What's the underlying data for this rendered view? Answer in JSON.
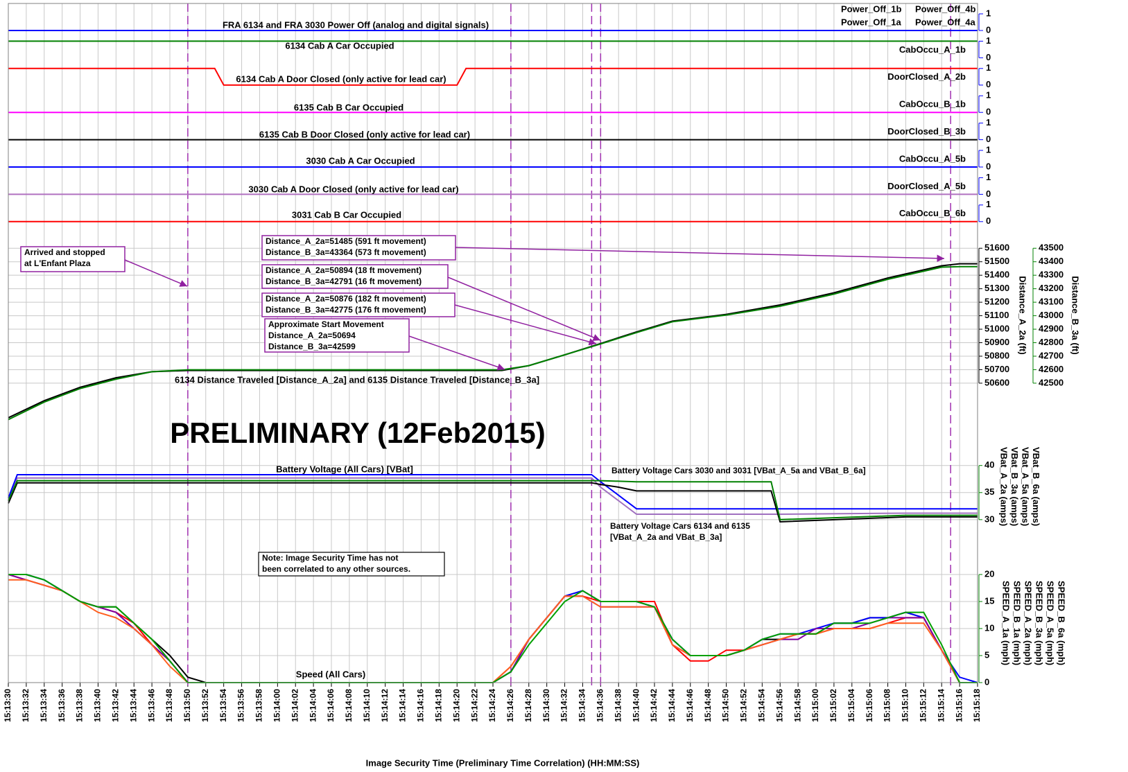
{
  "event_lines": [
    "15:13:50",
    "15:14:26",
    "15:14:35",
    "15:14:36",
    "15:15:15"
  ],
  "watermark": "PRELIMINARY (12Feb2015)",
  "chart_data": [
    {
      "type": "digital",
      "xlim": [
        "15:13:30",
        "15:15:18"
      ],
      "yticks": [
        0,
        1
      ],
      "x": [
        "15:13:30",
        "15:13:53",
        "15:13:54",
        "15:14:20",
        "15:14:21",
        "15:15:18"
      ],
      "channels": [
        {
          "label": "FRA 6134 and FRA 3030 Power Off (analog and digital signals)",
          "series": [
            {
              "name": "Power_Off_1b",
              "color": "#000000",
              "values": [
                0,
                0,
                0,
                0,
                0,
                0
              ]
            },
            {
              "name": "Power_Off_1a",
              "color": "#ff0000",
              "values": [
                0,
                0,
                0,
                0,
                0,
                0
              ]
            },
            {
              "name": "Power_Off_4a",
              "color": "#000000",
              "values": [
                0,
                0,
                0,
                0,
                0,
                0
              ]
            },
            {
              "name": "Power_Off_4b",
              "color": "#0000ff",
              "values": [
                0,
                0,
                0,
                0,
                0,
                0
              ]
            }
          ]
        },
        {
          "label": "6134 Cab A Car Occupied",
          "series": [
            {
              "name": "CabOccu_A_1b",
              "color": "#008000",
              "values": [
                1,
                1,
                1,
                1,
                1,
                1
              ]
            }
          ]
        },
        {
          "label": "6134 Cab A Door Closed (only active for lead car)",
          "series": [
            {
              "name": "DoorClosed_A_2b",
              "color": "#ff0000",
              "values": [
                1,
                1,
                0,
                0,
                1,
                1
              ]
            }
          ]
        },
        {
          "label": "6135 Cab B Car Occupied",
          "series": [
            {
              "name": "CabOccu_B_1b",
              "color": "#ff00ff",
              "values": [
                0,
                0,
                0,
                0,
                0,
                0
              ]
            }
          ]
        },
        {
          "label": "6135 Cab B Door Closed (only active for lead car)",
          "series": [
            {
              "name": "DoorClosed_B_3b",
              "color": "#000000",
              "values": [
                0,
                0,
                0,
                0,
                0,
                0
              ]
            }
          ]
        },
        {
          "label": "3030 Cab A Car Occupied",
          "series": [
            {
              "name": "CabOccu_A_5b",
              "color": "#0000ff",
              "values": [
                0,
                0,
                0,
                0,
                0,
                0
              ]
            }
          ]
        },
        {
          "label": "3030 Cab A Door Closed (only active for lead car)",
          "series": [
            {
              "name": "DoorClosed_A_5b",
              "color": "#b070c0",
              "values": [
                0,
                0,
                0,
                0,
                0,
                0
              ]
            }
          ]
        },
        {
          "label": "3031 Cab B Car Occupied",
          "series": [
            {
              "name": "CabOccu_B_6b",
              "color": "#ff0000",
              "values": [
                0,
                0,
                0,
                0,
                0,
                0
              ]
            }
          ]
        }
      ]
    },
    {
      "type": "line",
      "title": "6134 Distance Traveled [Distance_A_2a] and 6135 Distance Traveled [Distance_B_3a]",
      "xlim": [
        "15:13:30",
        "15:15:18"
      ],
      "ylabel": "Distance_A_2a (ft)",
      "y2label": "Distance_B_3a (ft)",
      "ylim": [
        50050,
        51745
      ],
      "y2lim": [
        41950,
        43645
      ],
      "yticks": [
        50600,
        50700,
        50800,
        50900,
        51000,
        51100,
        51200,
        51300,
        51400,
        51500,
        51600
      ],
      "y2ticks": [
        42500,
        42600,
        42700,
        42800,
        42900,
        43000,
        43100,
        43200,
        43300,
        43400,
        43500
      ],
      "y2color": "#008000",
      "x": [
        "15:13:30",
        "15:13:34",
        "15:13:38",
        "15:13:42",
        "15:13:46",
        "15:13:50",
        "15:14:25",
        "15:14:28",
        "15:14:32",
        "15:14:36",
        "15:14:40",
        "15:14:44",
        "15:14:50",
        "15:14:56",
        "15:15:02",
        "15:15:08",
        "15:15:14",
        "15:15:16",
        "15:15:18"
      ],
      "series": [
        {
          "color": "#000000",
          "values": [
            50344,
            50470,
            50570,
            50640,
            50685,
            50694,
            50694,
            50730,
            50810,
            50894,
            50980,
            51060,
            51110,
            51180,
            51270,
            51380,
            51470,
            51485,
            51485
          ]
        },
        {
          "color": "#008000",
          "axis": "y2",
          "values": [
            42230,
            42360,
            42460,
            42530,
            42585,
            42599,
            42599,
            42630,
            42710,
            42791,
            42875,
            42955,
            43005,
            43070,
            43160,
            43270,
            43360,
            43364,
            43364
          ]
        }
      ],
      "annotations": [
        {
          "lines": [
            "Arrived and stopped",
            "at L'Enfant Plaza"
          ]
        },
        {
          "lines": [
            "Distance_A_2a=51485 (591 ft movement)",
            "Distance_B_3a=43364 (573 ft movement)"
          ]
        },
        {
          "lines": [
            "Distance_A_2a=50894 (18 ft movement)",
            "Distance_B_3a=42791 (16 ft movement)"
          ]
        },
        {
          "lines": [
            "Distance_A_2a=50876 (182 ft movement)",
            "Distance_B_3a=42775 (176 ft movement)"
          ]
        },
        {
          "lines": [
            "Approximate Start Movement",
            "Distance_A_2a=50694",
            "Distance_B_3a=42599"
          ]
        }
      ]
    },
    {
      "type": "line",
      "title": "Battery Voltage (All Cars) [VBat]",
      "xlim": [
        "15:13:30",
        "15:15:18"
      ],
      "ylim": [
        25.5,
        41.5
      ],
      "yticks": [
        30,
        35,
        40
      ],
      "x": [
        "15:13:30",
        "15:13:31",
        "15:14:35",
        "15:14:36",
        "15:14:38",
        "15:14:40",
        "15:14:55",
        "15:14:56",
        "15:15:10",
        "15:15:18"
      ],
      "series": [
        {
          "name": "VBat_A_2a (amps)",
          "color": "#a070c0",
          "values": [
            33.5,
            37.7,
            37.7,
            36,
            33.5,
            31,
            31,
            31,
            31.2,
            31.2
          ]
        },
        {
          "name": "VBat_B_3a (amps)",
          "color": "#0000ff",
          "values": [
            34,
            38.3,
            38.3,
            37,
            34.5,
            32,
            32,
            32,
            32,
            32
          ]
        },
        {
          "name": "VBat_A_5a (amps)",
          "color": "#000000",
          "values": [
            33,
            36.8,
            36.8,
            36.5,
            36,
            35.3,
            35.3,
            29.6,
            30.5,
            30.5
          ]
        },
        {
          "name": "VBat_B_6a (amps)",
          "color": "#008000",
          "values": [
            33.5,
            37.2,
            37.2,
            37.2,
            37.1,
            37,
            37,
            30,
            30.8,
            30.8
          ]
        }
      ],
      "annotations": [
        {
          "lines": [
            "Battery Voltage Cars 3030 and 3031 [VBat_A_5a and VBat_B_6a]"
          ]
        },
        {
          "lines": [
            "Battery Voltage Cars 6134 and 6135",
            "[VBat_A_2a and VBat_B_3a]"
          ]
        }
      ]
    },
    {
      "type": "line",
      "title": "Speed (All Cars)",
      "xlim": [
        "15:13:30",
        "15:15:18"
      ],
      "xlabel": "Image Security Time (Preliminary Time Correlation) (HH:MM:SS)",
      "ylim": [
        0,
        25
      ],
      "yticks": [
        0,
        5,
        10,
        15,
        20
      ],
      "xticks": [
        "15:13:30",
        "15:13:32",
        "15:13:34",
        "15:13:36",
        "15:13:38",
        "15:13:40",
        "15:13:42",
        "15:13:44",
        "15:13:46",
        "15:13:48",
        "15:13:50",
        "15:13:52",
        "15:13:54",
        "15:13:56",
        "15:13:58",
        "15:14:00",
        "15:14:02",
        "15:14:04",
        "15:14:06",
        "15:14:08",
        "15:14:10",
        "15:14:12",
        "15:14:14",
        "15:14:16",
        "15:14:18",
        "15:14:20",
        "15:14:22",
        "15:14:24",
        "15:14:26",
        "15:14:28",
        "15:14:30",
        "15:14:32",
        "15:14:34",
        "15:14:36",
        "15:14:38",
        "15:14:40",
        "15:14:42",
        "15:14:44",
        "15:14:46",
        "15:14:48",
        "15:14:50",
        "15:14:52",
        "15:14:54",
        "15:14:56",
        "15:14:58",
        "15:15:00",
        "15:15:02",
        "15:15:04",
        "15:15:06",
        "15:15:08",
        "15:15:10",
        "15:15:12",
        "15:15:14",
        "15:15:16",
        "15:15:18"
      ],
      "x": [
        "15:13:30",
        "15:13:32",
        "15:13:34",
        "15:13:36",
        "15:13:38",
        "15:13:40",
        "15:13:42",
        "15:13:44",
        "15:13:46",
        "15:13:48",
        "15:13:50",
        "15:13:52",
        "15:13:54",
        "15:13:56",
        "15:13:58",
        "15:14:00",
        "15:14:02",
        "15:14:04",
        "15:14:06",
        "15:14:08",
        "15:14:10",
        "15:14:12",
        "15:14:14",
        "15:14:16",
        "15:14:18",
        "15:14:20",
        "15:14:22",
        "15:14:24",
        "15:14:26",
        "15:14:28",
        "15:14:30",
        "15:14:32",
        "15:14:34",
        "15:14:36",
        "15:14:38",
        "15:14:40",
        "15:14:42",
        "15:14:44",
        "15:14:46",
        "15:14:48",
        "15:14:50",
        "15:14:52",
        "15:14:54",
        "15:14:56",
        "15:14:58",
        "15:15:00",
        "15:15:02",
        "15:15:04",
        "15:15:06",
        "15:15:08",
        "15:15:10",
        "15:15:12",
        "15:15:14",
        "15:15:16",
        "15:15:18"
      ],
      "series": [
        {
          "name": "SPEED_A_1a (mph)",
          "color": "#000000",
          "values": [
            20,
            20,
            19,
            17,
            15,
            14,
            14,
            11,
            8,
            5,
            1,
            0,
            0,
            0,
            0,
            0,
            0,
            0,
            0,
            0,
            0,
            0,
            0,
            0,
            0,
            0,
            0,
            0,
            2,
            8,
            12,
            16,
            17,
            15,
            15,
            15,
            14,
            8,
            5,
            5,
            5,
            6,
            8,
            8,
            9,
            9,
            11,
            11,
            12,
            12,
            13,
            12,
            6,
            0,
            0
          ]
        },
        {
          "name": "SPEED_B_1a (mph)",
          "color": "#0000ff",
          "values": [
            20,
            20,
            19,
            17,
            15,
            14,
            13,
            10,
            7,
            4,
            0,
            0,
            0,
            0,
            0,
            0,
            0,
            0,
            0,
            0,
            0,
            0,
            0,
            0,
            0,
            0,
            0,
            0,
            2,
            8,
            12,
            16,
            17,
            15,
            15,
            15,
            14,
            8,
            5,
            5,
            5,
            6,
            8,
            9,
            9,
            10,
            11,
            11,
            12,
            12,
            13,
            12,
            6,
            1,
            0
          ]
        },
        {
          "name": "SPEED_A_2a (mph)",
          "color": "#ff0000",
          "values": [
            20,
            19,
            18,
            17,
            15,
            14,
            13,
            11,
            7,
            4,
            0,
            0,
            0,
            0,
            0,
            0,
            0,
            0,
            0,
            0,
            0,
            0,
            0,
            0,
            0,
            0,
            0,
            0,
            3,
            8,
            12,
            16,
            16,
            15,
            15,
            15,
            15,
            7,
            4,
            4,
            6,
            6,
            7,
            8,
            9,
            9,
            10,
            10,
            10,
            11,
            12,
            12,
            6,
            0,
            0
          ]
        },
        {
          "name": "SPEED_B_3a (mph)",
          "color": "#8000a0",
          "values": [
            20,
            19,
            18,
            17,
            15,
            14,
            13,
            10,
            7,
            4,
            0,
            0,
            0,
            0,
            0,
            0,
            0,
            0,
            0,
            0,
            0,
            0,
            0,
            0,
            0,
            0,
            0,
            0,
            2,
            8,
            12,
            16,
            16,
            14,
            14,
            14,
            14,
            7,
            5,
            5,
            5,
            6,
            7,
            8,
            8,
            10,
            10,
            10,
            11,
            12,
            12,
            12,
            6,
            0,
            0
          ]
        },
        {
          "name": "SPEED_A_5a (mph)",
          "color": "#ff6020",
          "values": [
            19,
            19,
            18,
            17,
            15,
            13,
            12,
            10,
            7,
            3,
            0,
            0,
            0,
            0,
            0,
            0,
            0,
            0,
            0,
            0,
            0,
            0,
            0,
            0,
            0,
            0,
            0,
            0,
            3,
            8,
            12,
            16,
            16,
            14,
            14,
            14,
            14,
            7,
            5,
            5,
            5,
            6,
            7,
            8,
            9,
            9,
            10,
            10,
            10,
            11,
            11,
            11,
            6,
            0,
            0
          ]
        },
        {
          "name": "SPEED_B_6a (mph)",
          "color": "#00a000",
          "values": [
            20,
            20,
            19,
            17,
            15,
            14,
            14,
            11,
            8,
            4,
            0,
            0,
            0,
            0,
            0,
            0,
            0,
            0,
            0,
            0,
            0,
            0,
            0,
            0,
            0,
            0,
            0,
            0,
            2,
            7,
            11,
            15,
            17,
            15,
            15,
            15,
            14,
            8,
            5,
            5,
            5,
            6,
            8,
            9,
            9,
            9,
            11,
            11,
            11,
            12,
            13,
            13,
            7,
            0,
            0
          ]
        }
      ],
      "annotations": [
        {
          "lines": [
            "Note: Image Security Time has not",
            "been correlated to any other sources."
          ]
        }
      ]
    }
  ]
}
